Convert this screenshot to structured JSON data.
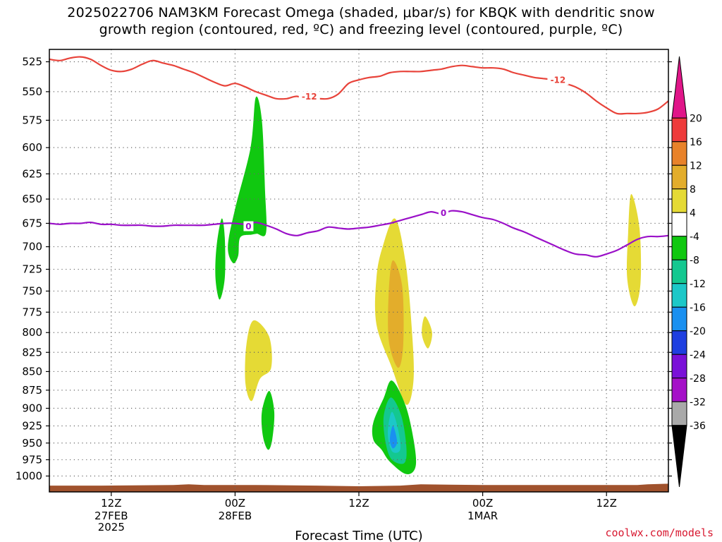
{
  "title": {
    "line1": "2025022706 NAM3KM Forecast Omega (shaded, μbar/s) for KBQK with dendritic snow",
    "line2": "growth region (contoured, red, ºC) and freezing level (contoured, purple, ºC)"
  },
  "credit": "coolwx.com/models",
  "colors": {
    "dgz_contour": "#e8433a",
    "freezing_contour": "#9a10c8",
    "terrain": "#a0522d",
    "grid": "#666666"
  },
  "chart_data": {
    "type": "heatmap",
    "xlabel": "Forecast Time (UTC)",
    "x_ticks": [
      {
        "label": "12Z",
        "sub": [
          "27FEB",
          "2025"
        ],
        "hour": 6
      },
      {
        "label": "00Z",
        "sub": [
          "28FEB"
        ],
        "hour": 18
      },
      {
        "label": "12Z",
        "sub": [],
        "hour": 30
      },
      {
        "label": "00Z",
        "sub": [
          "1MAR"
        ],
        "hour": 42
      },
      {
        "label": "12Z",
        "sub": [],
        "hour": 54
      }
    ],
    "xlim_hours": [
      0,
      60
    ],
    "ylabel": "",
    "y_scale": "log-pressure",
    "ylim_hPa": [
      1025,
      515
    ],
    "y_ticks": [
      525,
      550,
      575,
      600,
      625,
      650,
      675,
      700,
      725,
      750,
      775,
      800,
      825,
      850,
      875,
      900,
      925,
      950,
      975,
      1000
    ],
    "grid": true,
    "colorbar": {
      "unit": "μbar/s",
      "labels": [
        20,
        16,
        12,
        8,
        4,
        -4,
        -8,
        -12,
        -16,
        -20,
        -24,
        -28,
        -32,
        -36
      ],
      "bins": [
        {
          "from": 20,
          "to": 99,
          "color": "#e01689"
        },
        {
          "from": 16,
          "to": 20,
          "color": "#ee3b3b"
        },
        {
          "from": 12,
          "to": 16,
          "color": "#e8822a"
        },
        {
          "from": 8,
          "to": 12,
          "color": "#e3ad2b"
        },
        {
          "from": 4,
          "to": 8,
          "color": "#e5da35"
        },
        {
          "from": -4,
          "to": 4,
          "color": "#ffffff"
        },
        {
          "from": -8,
          "to": -4,
          "color": "#10c810"
        },
        {
          "from": -12,
          "to": -8,
          "color": "#14c890"
        },
        {
          "from": -16,
          "to": -12,
          "color": "#1cc8c8"
        },
        {
          "from": -20,
          "to": -16,
          "color": "#1a90f0"
        },
        {
          "from": -24,
          "to": -20,
          "color": "#1f3fe0"
        },
        {
          "from": -28,
          "to": -24,
          "color": "#7a10d8"
        },
        {
          "from": -32,
          "to": -28,
          "color": "#a510c8"
        },
        {
          "from": -36,
          "to": -32,
          "color": "#a9a9a9"
        },
        {
          "from": -99,
          "to": -36,
          "color": "#000000"
        }
      ]
    },
    "series": [
      {
        "name": "dendritic snow growth region (-12 ºC)",
        "label": "-12",
        "label_at": [
          {
            "hour": 25.2,
            "hPa": 554
          },
          {
            "hour": 49.3,
            "hPa": 540
          }
        ],
        "points": [
          [
            0,
            523
          ],
          [
            1,
            524
          ],
          [
            2,
            522
          ],
          [
            3,
            521
          ],
          [
            4,
            523
          ],
          [
            5,
            528
          ],
          [
            6,
            532
          ],
          [
            7,
            533
          ],
          [
            8,
            531
          ],
          [
            9,
            527
          ],
          [
            10,
            524
          ],
          [
            11,
            526
          ],
          [
            12,
            528
          ],
          [
            13,
            531
          ],
          [
            14,
            534
          ],
          [
            15,
            538
          ],
          [
            16,
            542
          ],
          [
            17,
            545
          ],
          [
            18,
            543
          ],
          [
            19,
            546
          ],
          [
            20,
            550
          ],
          [
            21,
            553
          ],
          [
            22,
            556
          ],
          [
            23,
            556
          ],
          [
            24,
            554
          ],
          [
            25,
            557
          ],
          [
            26,
            556
          ],
          [
            27,
            556
          ],
          [
            28,
            552
          ],
          [
            29,
            543
          ],
          [
            30,
            540
          ],
          [
            31,
            538
          ],
          [
            32,
            537
          ],
          [
            33,
            534
          ],
          [
            34,
            533
          ],
          [
            35,
            533
          ],
          [
            36,
            533
          ],
          [
            37,
            532
          ],
          [
            38,
            531
          ],
          [
            39,
            529
          ],
          [
            40,
            528
          ],
          [
            41,
            529
          ],
          [
            42,
            530
          ],
          [
            43,
            530
          ],
          [
            44,
            531
          ],
          [
            45,
            534
          ],
          [
            46,
            536
          ],
          [
            47,
            538
          ],
          [
            48,
            539
          ],
          [
            49,
            540
          ],
          [
            50,
            543
          ],
          [
            51,
            546
          ],
          [
            52,
            551
          ],
          [
            53,
            558
          ],
          [
            54,
            564
          ],
          [
            55,
            569
          ],
          [
            56,
            569
          ],
          [
            57,
            569
          ],
          [
            58,
            568
          ],
          [
            59,
            565
          ],
          [
            60,
            558
          ]
        ]
      },
      {
        "name": "freezing level (0 ºC)",
        "label": "0",
        "label_at": [
          {
            "hour": 19.3,
            "hPa": 678
          },
          {
            "hour": 38.2,
            "hPa": 664
          }
        ],
        "points": [
          [
            0,
            675
          ],
          [
            1,
            676
          ],
          [
            2,
            675
          ],
          [
            3,
            675
          ],
          [
            4,
            674
          ],
          [
            5,
            676
          ],
          [
            6,
            676
          ],
          [
            7,
            677
          ],
          [
            8,
            677
          ],
          [
            9,
            677
          ],
          [
            10,
            678
          ],
          [
            11,
            678
          ],
          [
            12,
            677
          ],
          [
            13,
            677
          ],
          [
            14,
            677
          ],
          [
            15,
            677
          ],
          [
            16,
            676
          ],
          [
            17,
            675
          ],
          [
            18,
            675
          ],
          [
            19,
            676
          ],
          [
            20,
            674
          ],
          [
            21,
            677
          ],
          [
            22,
            681
          ],
          [
            23,
            686
          ],
          [
            24,
            688
          ],
          [
            25,
            685
          ],
          [
            26,
            683
          ],
          [
            27,
            679
          ],
          [
            28,
            680
          ],
          [
            29,
            681
          ],
          [
            30,
            680
          ],
          [
            31,
            679
          ],
          [
            32,
            677
          ],
          [
            33,
            675
          ],
          [
            34,
            672
          ],
          [
            35,
            669
          ],
          [
            36,
            666
          ],
          [
            37,
            663
          ],
          [
            38,
            665
          ],
          [
            39,
            662
          ],
          [
            40,
            663
          ],
          [
            41,
            666
          ],
          [
            42,
            669
          ],
          [
            43,
            671
          ],
          [
            44,
            675
          ],
          [
            45,
            680
          ],
          [
            46,
            684
          ],
          [
            47,
            689
          ],
          [
            48,
            694
          ],
          [
            49,
            699
          ],
          [
            50,
            704
          ],
          [
            51,
            708
          ],
          [
            52,
            709
          ],
          [
            53,
            711
          ],
          [
            54,
            708
          ],
          [
            55,
            704
          ],
          [
            56,
            698
          ],
          [
            57,
            692
          ],
          [
            58,
            689
          ],
          [
            59,
            689
          ],
          [
            60,
            688
          ]
        ]
      }
    ],
    "shaded_regions": [
      {
        "value": -6,
        "hours": [
          [
            20.0,
            555
          ],
          [
            20.6,
            575
          ],
          [
            20.9,
            640
          ],
          [
            21.0,
            685
          ],
          [
            20.1,
            686
          ],
          [
            19.6,
            687
          ],
          [
            18.5,
            690
          ],
          [
            18.3,
            710
          ],
          [
            17.8,
            718
          ],
          [
            17.3,
            700
          ],
          [
            18.0,
            660
          ],
          [
            19.5,
            600
          ]
        ]
      },
      {
        "value": -6,
        "hours": [
          [
            16.7,
            670
          ],
          [
            17.0,
            690
          ],
          [
            17.0,
            735
          ],
          [
            16.5,
            760
          ],
          [
            16.1,
            735
          ],
          [
            16.2,
            700
          ]
        ]
      },
      {
        "value": -6,
        "hours": [
          [
            21.3,
            876
          ],
          [
            21.8,
            905
          ],
          [
            21.6,
            945
          ],
          [
            21.2,
            960
          ],
          [
            20.7,
            940
          ],
          [
            20.6,
            905
          ]
        ]
      },
      {
        "value": 6,
        "hours": [
          [
            19.8,
            785
          ],
          [
            21.3,
            805
          ],
          [
            21.5,
            845
          ],
          [
            20.4,
            860
          ],
          [
            19.6,
            890
          ],
          [
            19.0,
            865
          ],
          [
            19.1,
            815
          ]
        ]
      },
      {
        "value": 6,
        "hours": [
          [
            33.5,
            670
          ],
          [
            34.5,
            715
          ],
          [
            35.1,
            790
          ],
          [
            35.3,
            860
          ],
          [
            34.6,
            895
          ],
          [
            33.2,
            845
          ],
          [
            31.7,
            790
          ],
          [
            31.7,
            735
          ],
          [
            32.3,
            700
          ]
        ]
      },
      {
        "value": 10,
        "hours": [
          [
            33.3,
            715
          ],
          [
            34.2,
            745
          ],
          [
            34.3,
            815
          ],
          [
            33.8,
            845
          ],
          [
            32.9,
            810
          ],
          [
            32.9,
            750
          ]
        ]
      },
      {
        "value": 6,
        "hours": [
          [
            36.4,
            780
          ],
          [
            37.1,
            800
          ],
          [
            36.7,
            820
          ],
          [
            36.1,
            802
          ]
        ]
      },
      {
        "value": 6,
        "hours": [
          [
            56.4,
            645
          ],
          [
            57.2,
            680
          ],
          [
            57.3,
            740
          ],
          [
            56.7,
            768
          ],
          [
            56.0,
            735
          ],
          [
            56.1,
            685
          ]
        ]
      },
      {
        "value": -6,
        "hours": [
          [
            33.2,
            862
          ],
          [
            34.5,
            895
          ],
          [
            35.3,
            945
          ],
          [
            35.5,
            985
          ],
          [
            34.6,
            997
          ],
          [
            33.0,
            978
          ],
          [
            32.2,
            960
          ],
          [
            31.4,
            945
          ],
          [
            31.4,
            920
          ],
          [
            32.4,
            886
          ]
        ]
      },
      {
        "value": -10,
        "hours": [
          [
            33.1,
            885
          ],
          [
            34.1,
            910
          ],
          [
            34.6,
            955
          ],
          [
            34.4,
            980
          ],
          [
            33.2,
            975
          ],
          [
            32.6,
            950
          ],
          [
            32.4,
            912
          ]
        ]
      },
      {
        "value": -14,
        "hours": [
          [
            33.2,
            905
          ],
          [
            33.8,
            930
          ],
          [
            34.0,
            960
          ],
          [
            33.2,
            962
          ],
          [
            32.8,
            935
          ]
        ]
      },
      {
        "value": -18,
        "hours": [
          [
            33.3,
            925
          ],
          [
            33.7,
            948
          ],
          [
            33.3,
            958
          ],
          [
            33.0,
            945
          ]
        ]
      }
    ],
    "terrain_surface": [
      [
        0,
        1015
      ],
      [
        5,
        1015
      ],
      [
        12,
        1014
      ],
      [
        13.5,
        1013
      ],
      [
        15,
        1014
      ],
      [
        20,
        1014
      ],
      [
        26,
        1015
      ],
      [
        30,
        1016
      ],
      [
        34,
        1015
      ],
      [
        36,
        1013
      ],
      [
        42,
        1014
      ],
      [
        50,
        1014
      ],
      [
        57,
        1014
      ],
      [
        58,
        1013
      ],
      [
        60,
        1012
      ]
    ]
  }
}
